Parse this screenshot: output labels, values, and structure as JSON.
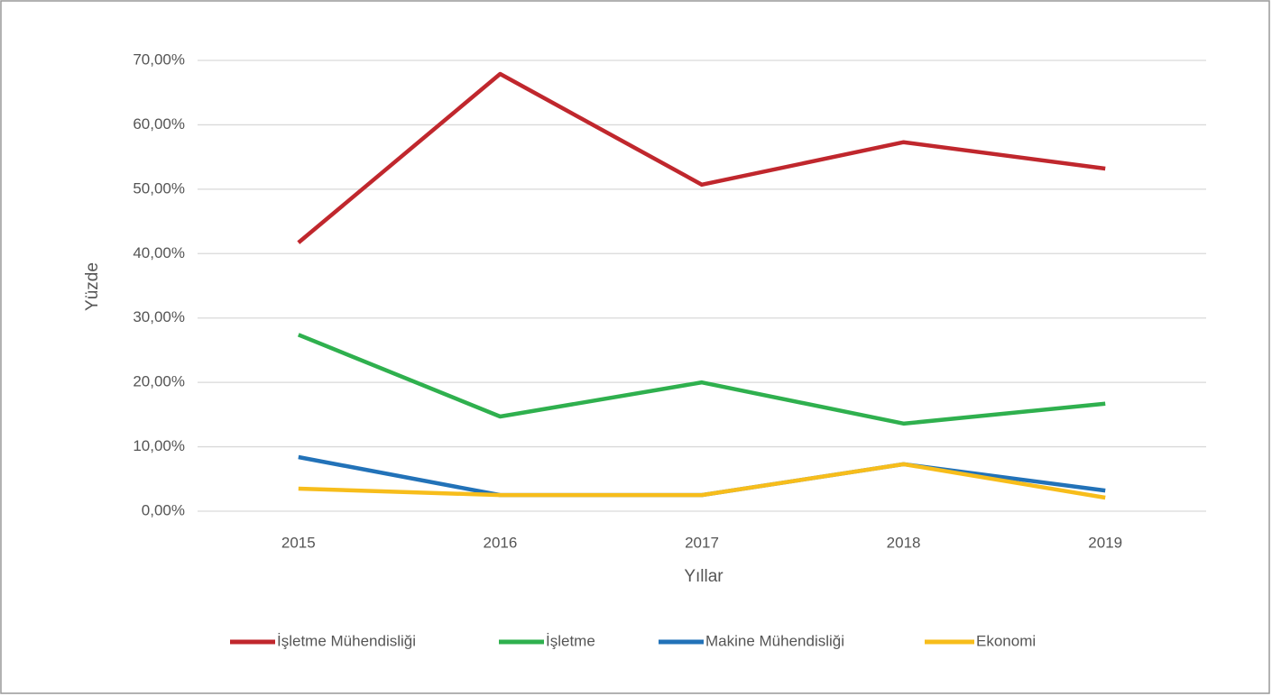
{
  "chart_data": {
    "type": "line",
    "x_label": "Yıllar",
    "y_label": "Yüzde",
    "categories": [
      "2015",
      "2016",
      "2017",
      "2018",
      "2019"
    ],
    "series": [
      {
        "name": "İşletme Mühendisliği",
        "color": "#c0272d",
        "values": [
          41.7,
          67.9,
          50.7,
          57.3,
          53.2
        ]
      },
      {
        "name": "İşletme",
        "color": "#2fb04e",
        "values": [
          27.4,
          14.7,
          20.0,
          13.6,
          16.7
        ]
      },
      {
        "name": "Makine Mühendisliği",
        "color": "#2272b8",
        "values": [
          8.4,
          2.5,
          2.5,
          7.3,
          3.2
        ]
      },
      {
        "name": "Ekonomi",
        "color": "#f7bd1b",
        "values": [
          3.5,
          2.5,
          2.5,
          7.3,
          2.1
        ]
      }
    ],
    "ylim": [
      0,
      70
    ],
    "yticks": [
      {
        "value": 0,
        "label": "0,00%"
      },
      {
        "value": 10,
        "label": "10,00%"
      },
      {
        "value": 20,
        "label": "20,00%"
      },
      {
        "value": 30,
        "label": "30,00%"
      },
      {
        "value": 40,
        "label": "40,00%"
      },
      {
        "value": 50,
        "label": "50,00%"
      },
      {
        "value": 60,
        "label": "60,00%"
      },
      {
        "value": 70,
        "label": "70,00%"
      }
    ],
    "grid": true,
    "legend": "bottom"
  }
}
